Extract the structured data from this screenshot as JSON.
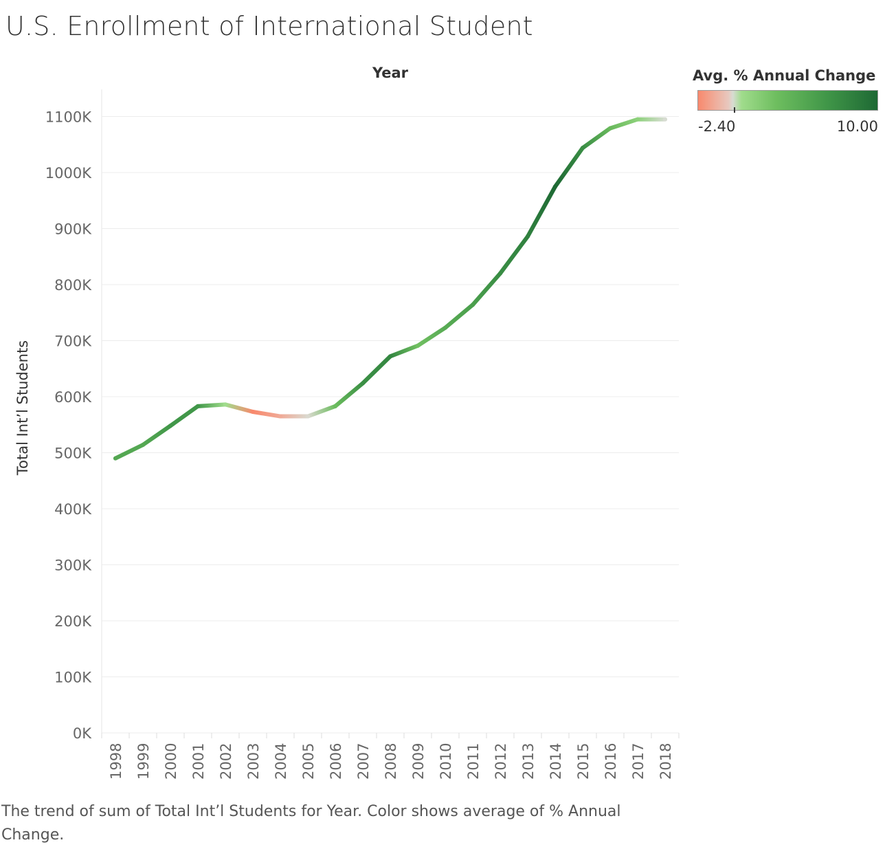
{
  "title": "U.S. Enrollment of International Student",
  "column_header": "Year",
  "legend": {
    "title": "Avg. % Annual Change",
    "min_label": "-2.40",
    "max_label": "10.00",
    "colors": [
      "#f8896d",
      "#e9c2b6",
      "#d9d9d9",
      "#9edc87",
      "#6cbf5f",
      "#3f9a4a",
      "#1e6b35"
    ]
  },
  "caption": "The trend of sum of Total Int’l Students for Year.  Color shows average of % Annual Change.",
  "chart_data": {
    "type": "line",
    "title": "U.S. Enrollment of International Student",
    "xlabel": "Year",
    "ylabel": "Total Int’l Students",
    "ylim": [
      0,
      1150000
    ],
    "y_ticks": [
      0,
      100000,
      200000,
      300000,
      400000,
      500000,
      600000,
      700000,
      800000,
      900000,
      1000000,
      1100000
    ],
    "y_tick_labels": [
      "0K",
      "100K",
      "200K",
      "300K",
      "400K",
      "500K",
      "600K",
      "700K",
      "800K",
      "900K",
      "1000K",
      "1100K"
    ],
    "categories": [
      "1998",
      "1999",
      "2000",
      "2001",
      "2002",
      "2003",
      "2004",
      "2005",
      "2006",
      "2007",
      "2008",
      "2009",
      "2010",
      "2011",
      "2012",
      "2013",
      "2014",
      "2015",
      "2016",
      "2017",
      "2018"
    ],
    "values": [
      490000,
      514000,
      548000,
      583000,
      586000,
      573000,
      565000,
      565000,
      583000,
      624000,
      672000,
      691000,
      723000,
      764000,
      820000,
      886000,
      975000,
      1044000,
      1079000,
      1095000,
      1095000
    ],
    "color_metric": "% Annual Change",
    "color_range": [
      -2.4,
      10.0
    ],
    "pct_change": [
      5.0,
      4.9,
      6.4,
      6.4,
      0.6,
      -2.4,
      -1.3,
      -0.05,
      3.2,
      7.0,
      7.7,
      2.9,
      4.7,
      5.7,
      7.2,
      8.1,
      10.0,
      7.1,
      3.4,
      1.5,
      0.0
    ],
    "grid": true
  }
}
